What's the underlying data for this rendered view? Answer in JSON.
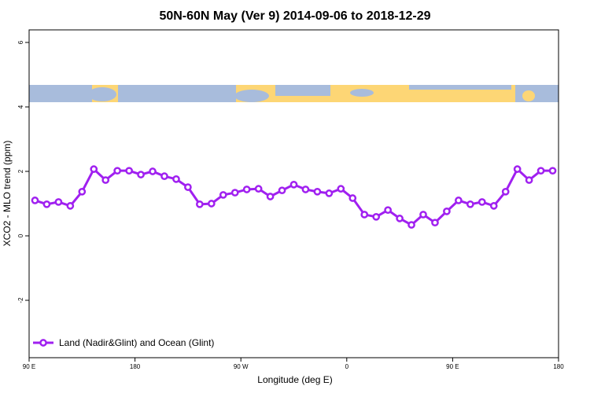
{
  "chart_data": {
    "type": "line",
    "title": "50N-60N May (Ver 9)   2014-09-06 to 2018-12-29",
    "x_label": "Longitude (deg E)",
    "y_label": "XCO2 - MLO trend (ppm)",
    "x": [
      95,
      105,
      115,
      125,
      135,
      145,
      155,
      165,
      175,
      185,
      195,
      205,
      215,
      225,
      235,
      245,
      255,
      265,
      275,
      285,
      295,
      305,
      315,
      325,
      335,
      345,
      355,
      365,
      375,
      385,
      395,
      405,
      415,
      425,
      435,
      445,
      455,
      465,
      475,
      485,
      495,
      505,
      515,
      525,
      535
    ],
    "series": [
      {
        "name": "Land (Nadir&Glint) and Ocean (Glint)",
        "color": "#a020f0",
        "values": [
          1.1,
          0.98,
          1.05,
          0.93,
          1.37,
          2.07,
          1.73,
          2.02,
          2.02,
          1.9,
          2.0,
          1.85,
          1.76,
          1.51,
          0.98,
          1.0,
          1.27,
          1.34,
          1.44,
          1.46,
          1.22,
          1.41,
          1.59,
          1.44,
          1.37,
          1.32,
          1.46,
          1.17,
          0.66,
          0.59,
          0.8,
          0.54,
          0.34,
          0.66,
          0.41,
          0.76,
          1.1,
          0.98,
          1.05,
          0.93,
          1.37,
          2.07,
          1.73,
          2.02,
          2.02
        ]
      }
    ],
    "xlim": [
      90,
      540
    ],
    "xticks": [
      {
        "value": 90,
        "label": "90 E"
      },
      180,
      {
        "value": 270,
        "label": "90 W"
      },
      {
        "value": 360,
        "label": "0"
      },
      {
        "value": 450,
        "label": "90 E"
      },
      {
        "value": 540,
        "label": "180"
      }
    ],
    "ylim": [
      -3.78,
      6.39
    ],
    "yticks": [
      -2,
      0,
      2,
      4,
      6
    ],
    "legend": "bottom-left"
  }
}
